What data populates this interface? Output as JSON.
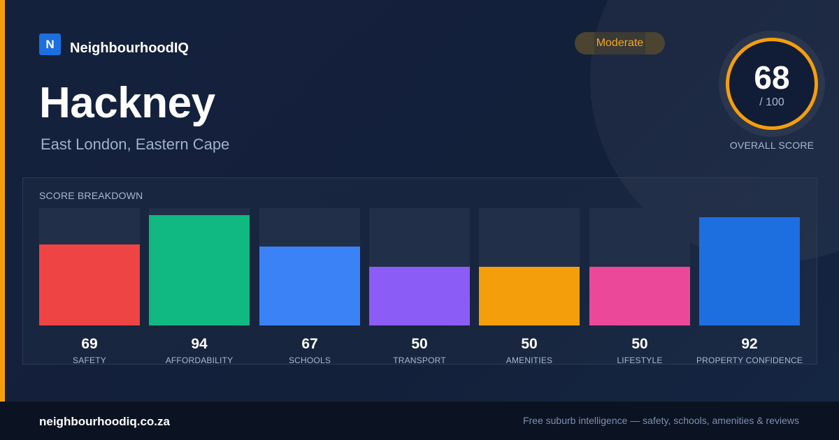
{
  "brand": {
    "logo_letter": "N",
    "name": "NeighbourhoodIQ"
  },
  "suburb": {
    "name": "Hackney",
    "location": "East London, Eastern Cape"
  },
  "rating_badge": "Moderate",
  "overall": {
    "score": "68",
    "max": "/ 100",
    "label": "OVERALL SCORE",
    "ring_color": "#f59e0b"
  },
  "breakdown": {
    "title": "SCORE BREAKDOWN",
    "items": [
      {
        "label": "SAFETY",
        "value": 69,
        "color": "#ef4444"
      },
      {
        "label": "AFFORDABILITY",
        "value": 94,
        "color": "#10b981"
      },
      {
        "label": "SCHOOLS",
        "value": 67,
        "color": "#3b82f6"
      },
      {
        "label": "TRANSPORT",
        "value": 50,
        "color": "#8b5cf6"
      },
      {
        "label": "AMENITIES",
        "value": 50,
        "color": "#f59e0b"
      },
      {
        "label": "LIFESTYLE",
        "value": 50,
        "color": "#ec4899"
      },
      {
        "label": "PROPERTY CONFIDENCE",
        "value": 92,
        "color": "#1d6fe0"
      }
    ]
  },
  "footer": {
    "site": "neighbourhoodiq.co.za",
    "tagline": "Free suburb intelligence — safety, schools, amenities & reviews"
  }
}
